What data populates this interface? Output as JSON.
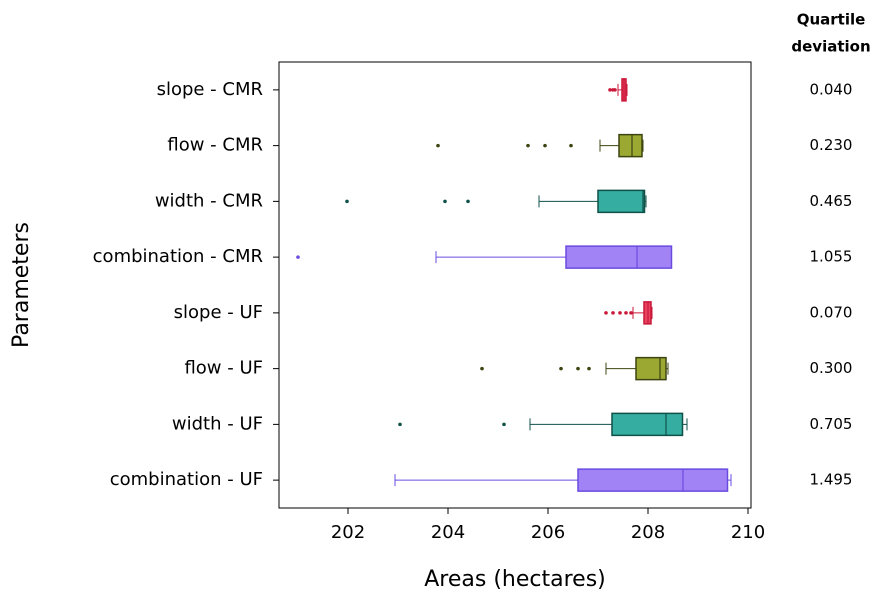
{
  "chart_data": {
    "type": "boxplot",
    "x_label": "Areas (hectares)",
    "y_label": "Parameters",
    "categories": [
      "slope - CMR",
      "flow - CMR",
      "width - CMR",
      "combination - CMR",
      "slope - UF",
      "flow - UF",
      "width - UF",
      "combination - UF"
    ],
    "boxes": [
      {
        "whislo": 207.4,
        "q1": 207.48,
        "med": 207.52,
        "q3": 207.56,
        "whishi": 207.58,
        "fliers": [
          207.24,
          207.3,
          207.34
        ],
        "color": "#e8435f",
        "edge": "#c9183a"
      },
      {
        "whislo": 207.04,
        "q1": 207.42,
        "med": 207.68,
        "q3": 207.88,
        "whishi": 207.9,
        "fliers": [
          203.8,
          205.6,
          205.94,
          206.46
        ],
        "color": "#9ba832",
        "edge": "#3c4410"
      },
      {
        "whislo": 205.82,
        "q1": 207.0,
        "med": 207.9,
        "q3": 207.93,
        "whishi": 207.96,
        "fliers": [
          201.98,
          203.94,
          204.4
        ],
        "color": "#35ada0",
        "edge": "#0f5149"
      },
      {
        "whislo": 203.76,
        "q1": 206.36,
        "med": 207.78,
        "q3": 208.47,
        "whishi": 208.47,
        "fliers": [
          201.0
        ],
        "color": "#a283f5",
        "edge": "#6a4be0"
      },
      {
        "whislo": 207.7,
        "q1": 207.92,
        "med": 208.0,
        "q3": 208.06,
        "whishi": 208.08,
        "fliers": [
          207.16,
          207.3,
          207.44,
          207.56,
          207.66
        ],
        "color": "#e8435f",
        "edge": "#c9183a"
      },
      {
        "whislo": 207.16,
        "q1": 207.76,
        "med": 208.24,
        "q3": 208.36,
        "whishi": 208.4,
        "fliers": [
          204.68,
          206.26,
          206.6,
          206.82
        ],
        "color": "#9ba832",
        "edge": "#3c4410"
      },
      {
        "whislo": 205.64,
        "q1": 207.28,
        "med": 208.36,
        "q3": 208.69,
        "whishi": 208.78,
        "fliers": [
          203.04,
          205.12
        ],
        "color": "#35ada0",
        "edge": "#0f5149"
      },
      {
        "whislo": 202.94,
        "q1": 206.6,
        "med": 208.7,
        "q3": 209.59,
        "whishi": 209.66,
        "fliers": [],
        "color": "#a283f5",
        "edge": "#6a4be0"
      }
    ],
    "xlim": [
      200.62,
      210.06
    ],
    "xticks": [
      202,
      204,
      206,
      208,
      210
    ],
    "side_header": [
      "Quartile",
      "deviation"
    ],
    "side_values": [
      "0.040",
      "0.230",
      "0.465",
      "1.055",
      "0.070",
      "0.300",
      "0.705",
      "1.495"
    ]
  }
}
